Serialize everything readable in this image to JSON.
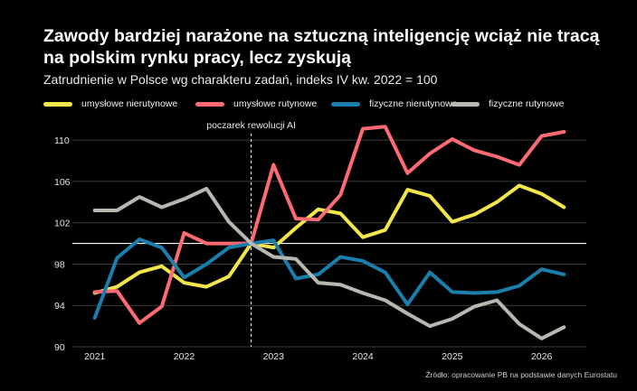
{
  "chart_data": {
    "type": "line",
    "title": "Zawody bardziej narażone na sztuczną inteligencję wciąż nie tracą na polskim rynku pracy, lecz zyskują",
    "subtitle": "Zatrudnienie w Polsce wg charakteru zadań, indeks IV kw. 2022 = 100",
    "ylim": [
      90,
      111.5
    ],
    "y_ticks": [
      90,
      94,
      98,
      102,
      106,
      110
    ],
    "baseline": 100,
    "x_ticks": [
      {
        "label": "2021",
        "x": 2021.0
      },
      {
        "label": "2022",
        "x": 2022.0
      },
      {
        "label": "2023",
        "x": 2023.0
      },
      {
        "label": "2024",
        "x": 2024.0
      },
      {
        "label": "2025",
        "x": 2025.0
      },
      {
        "label": "2026",
        "x": 2026.0
      }
    ],
    "xlim": [
      2020.75,
      2026.5
    ],
    "grid": "horizontal",
    "annotation": {
      "label": "poczarek rewolucji AI",
      "x": 2022.75
    },
    "x": [
      2021.0,
      2021.25,
      2021.5,
      2021.75,
      2022.0,
      2022.25,
      2022.5,
      2022.75,
      2023.0,
      2023.25,
      2023.5,
      2023.75,
      2024.0,
      2024.25,
      2024.5,
      2024.75,
      2025.0,
      2025.25,
      2025.5,
      2025.75,
      2026.0,
      2026.25
    ],
    "series": [
      {
        "name": "umysłowe nierutynowe",
        "color": "#f2e64a",
        "values": [
          95.2,
          95.8,
          97.2,
          97.8,
          96.2,
          95.8,
          96.8,
          100.0,
          99.6,
          101.5,
          103.3,
          102.9,
          100.6,
          101.3,
          105.2,
          104.6,
          102.1,
          102.8,
          104.0,
          105.6,
          104.8,
          103.5
        ]
      },
      {
        "name": "umysłowe rutynowe",
        "color": "#ff6b73",
        "values": [
          95.3,
          95.4,
          92.3,
          93.9,
          101.0,
          100.0,
          100.0,
          100.0,
          107.6,
          102.4,
          102.3,
          104.7,
          111.1,
          111.3,
          106.8,
          108.7,
          110.1,
          109.0,
          108.4,
          107.6,
          110.4,
          110.8
        ]
      },
      {
        "name": "fizyczne nierutynowe",
        "color": "#1a7fad",
        "values": [
          92.8,
          98.6,
          100.4,
          99.6,
          96.7,
          98.0,
          99.6,
          100.0,
          100.3,
          96.6,
          97.0,
          98.7,
          98.3,
          97.2,
          94.1,
          97.2,
          95.3,
          95.2,
          95.3,
          95.9,
          97.5,
          97.0
        ]
      },
      {
        "name": "fizyczne rutynowe",
        "color": "#b8b8b0",
        "values": [
          103.2,
          103.2,
          104.5,
          103.5,
          104.3,
          105.3,
          102.1,
          100.0,
          98.7,
          98.5,
          96.2,
          96.0,
          95.2,
          94.5,
          93.2,
          92.0,
          92.7,
          93.9,
          94.5,
          92.2,
          90.8,
          91.9
        ]
      }
    ]
  },
  "source": "Źródło: opracowanie PB na podstawie danych Eurostatu"
}
